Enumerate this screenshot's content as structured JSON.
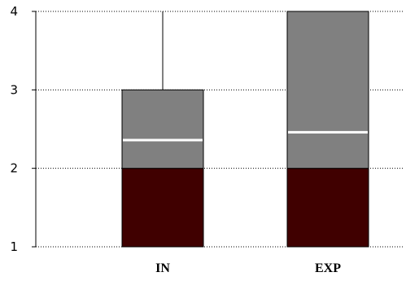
{
  "chart_data": {
    "type": "box",
    "categories": [
      "IN",
      "EXP"
    ],
    "y_ticks": [
      "1",
      "2",
      "3",
      "4"
    ],
    "ylim": [
      1,
      4
    ],
    "grid": true,
    "grid_style": "dotted",
    "boxes": [
      {
        "category": "IN",
        "min": 1,
        "q1": 2,
        "mean": 2.36,
        "q3": 3,
        "max": 4
      },
      {
        "category": "EXP",
        "min": 1,
        "q1": 2,
        "mean": 2.46,
        "q3": 4,
        "max": 4
      }
    ],
    "colors": {
      "lower_box": "#400000",
      "upper_box": "#808080",
      "mean_line": "#ffffff",
      "grid": "#000000",
      "axis": "#000000"
    }
  }
}
